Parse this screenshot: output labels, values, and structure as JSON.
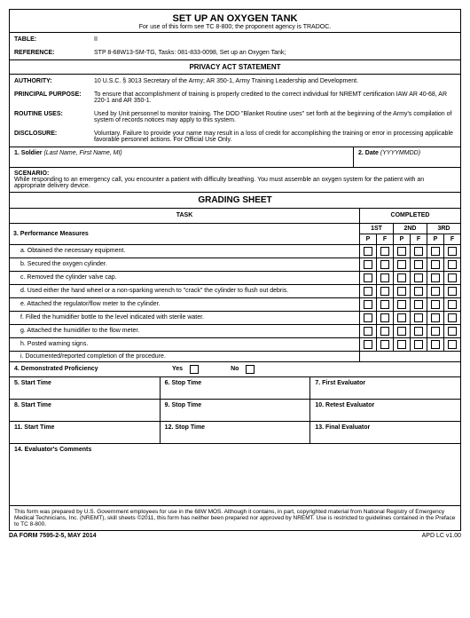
{
  "title": "SET UP AN OXYGEN TANK",
  "subtitle": "For use of this form see TC 8-800; the proponent agency is TRADOC.",
  "table_label": "TABLE:",
  "table_value": "II",
  "reference_label": "REFERENCE:",
  "reference_value": "STP 8-68W13-SM-TG, Tasks:  081-833-0098, Set up an Oxygen Tank;",
  "privacy_title": "PRIVACY ACT STATEMENT",
  "authority_label": "AUTHORITY:",
  "authority_value": "10 U.S.C. § 3013 Secretary of the Army; AR 350-1, Army Training Leadership and Development.",
  "purpose_label": "PRINCIPAL PURPOSE:",
  "purpose_value": "To ensure that accomplishment of training is properly credited to the correct individual for NREMT certification IAW AR 40-68, AR 220-1 and AR 350-1.",
  "routine_label": "ROUTINE USES:",
  "routine_value": "Used by Unit personnel to monitor training.  The DOD \"Blanket Routine uses\" set forth at the beginning of the Army's compilation of system of records notices may apply to this system.",
  "disclosure_label": "DISCLOSURE:",
  "disclosure_value": "Voluntary.  Failure to provide your name may result in a loss of credit for accomplishing the training or error in processing applicable favorable personnel actions.  For Official Use Only.",
  "soldier_label": "1.  Soldier",
  "soldier_hint": "(Last Name, First Name, MI)",
  "date_label": "2.  Date",
  "date_hint": "(YYYYMMDD)",
  "scenario_label": "SCENARIO:",
  "scenario_text": "While responding to an emergency call, you encounter a patient with difficulty breathing.  You must assemble an oxygen system for the patient with an appropriate delivery device.",
  "grading_title": "GRADING SHEET",
  "task_header": "TASK",
  "completed_header": "COMPLETED",
  "measures_label": "3.  Performance Measures",
  "attempts": [
    "1ST",
    "2ND",
    "3RD"
  ],
  "pf": {
    "p": "P",
    "f": "F"
  },
  "measures": [
    "a. Obtained the necessary equipment.",
    "b. Secured the oxygen cylinder.",
    "c. Removed the cylinder valve cap.",
    "d. Used either the hand wheel or a non-sparking wrench to \"crack\" the cylinder to flush out debris.",
    "e. Attached the regulator/flow meter to the cylinder.",
    "f. Filled the humidifier bottle to the level indicated with sterile water.",
    "g. Attached the humidifier to the flow meter.",
    "h. Posted warning signs.",
    "i. Documented/reported completion of the procedure."
  ],
  "demo_label": "4.  Demonstrated Proficiency",
  "yes": "Yes",
  "no": "No",
  "rows_time": [
    {
      "start": "5.  Start Time",
      "stop": "6.  Stop Time",
      "eval": "7.  First Evaluator"
    },
    {
      "start": "8.  Start Time",
      "stop": "9.  Stop Time",
      "eval": "10. Retest Evaluator"
    },
    {
      "start": "11.  Start Time",
      "stop": "12.  Stop Time",
      "eval": "13.  Final Evaluator"
    }
  ],
  "comments_label": "14.  Evaluator's Comments",
  "footer_note": "This form was prepared by U.S. Government employees for use in the 68W MOS.  Although it contains, in part, copyrighted material from National Registry of Emergency Medical Technicians, Inc. (NREMT), skill sheets ©2011, this form has neither been prepared nor approved by NREMT.  Use is restricted to guidelines contained in the Preface to TC 8-800.",
  "form_id": "DA FORM 7595-2-5, MAY 2014",
  "apd": "APD LC v1.00"
}
